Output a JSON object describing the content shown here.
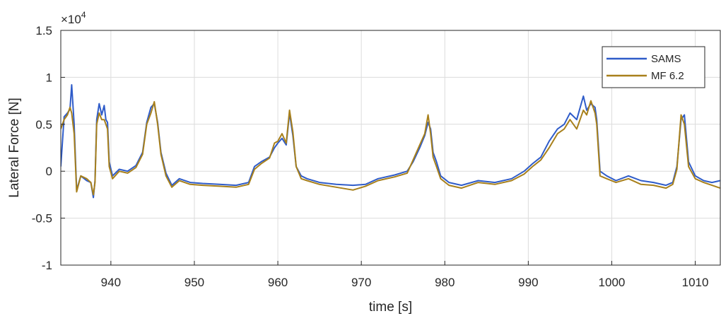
{
  "chart_data": {
    "type": "line",
    "xlabel": "time [s]",
    "ylabel": "Lateral Force [N]",
    "y_exponent_label": "×10",
    "y_exponent_power": "4",
    "xlim": [
      934,
      1013
    ],
    "ylim": [
      -1,
      1.5
    ],
    "x_ticks": [
      940,
      950,
      960,
      970,
      980,
      990,
      1000,
      1010
    ],
    "x_tick_labels": [
      "940",
      "950",
      "960",
      "970",
      "980",
      "990",
      "1000",
      "1010"
    ],
    "y_ticks": [
      -1,
      -0.5,
      0,
      0.5,
      1,
      1.5
    ],
    "y_tick_labels": [
      "-1",
      "-0.5",
      "0",
      "0.5",
      "1",
      "1.5"
    ],
    "grid": true,
    "legend_position": "top-right",
    "series": [
      {
        "name": "SAMS",
        "color": "#2f5cc9",
        "x": [
          934,
          934.4,
          934.8,
          935.1,
          935.3,
          935.6,
          935.9,
          936.4,
          937.1,
          937.6,
          937.9,
          938.1,
          938.3,
          938.6,
          938.9,
          939.2,
          939.4,
          939.6,
          939.8,
          940.2,
          941,
          942,
          943,
          943.8,
          944.3,
          944.8,
          945.2,
          945.6,
          946,
          946.6,
          947.3,
          948.2,
          949.5,
          951,
          953,
          955,
          956.5,
          957.2,
          958,
          959,
          959.6,
          960,
          960.5,
          961,
          961.4,
          961.8,
          962.2,
          962.8,
          963.5,
          965,
          967,
          969,
          970.5,
          972,
          974,
          975.5,
          976.2,
          977,
          977.6,
          978,
          978.3,
          978.6,
          979,
          979.5,
          980.5,
          982,
          984,
          986,
          988,
          989.5,
          990.5,
          991.5,
          992.5,
          993.5,
          994.3,
          995,
          995.8,
          996.6,
          997,
          997.5,
          998,
          998.2,
          998.6,
          999.4,
          1000.5,
          1002,
          1003.5,
          1005,
          1006.5,
          1007.3,
          1007.8,
          1008.3,
          1008.7,
          1009.2,
          1010,
          1011,
          1012,
          1013
        ],
        "y": [
          0.05,
          0.58,
          0.62,
          0.66,
          0.92,
          0.5,
          -0.2,
          -0.05,
          -0.1,
          -0.12,
          -0.28,
          -0.1,
          0.55,
          0.72,
          0.6,
          0.7,
          0.55,
          0.52,
          0.1,
          -0.05,
          0.02,
          0.0,
          0.06,
          0.2,
          0.52,
          0.68,
          0.72,
          0.52,
          0.2,
          -0.02,
          -0.15,
          -0.08,
          -0.12,
          -0.13,
          -0.14,
          -0.15,
          -0.12,
          0.05,
          0.1,
          0.15,
          0.25,
          0.3,
          0.35,
          0.28,
          0.62,
          0.38,
          0.05,
          -0.05,
          -0.08,
          -0.12,
          -0.14,
          -0.15,
          -0.14,
          -0.08,
          -0.04,
          0.0,
          0.1,
          0.25,
          0.38,
          0.52,
          0.45,
          0.2,
          0.1,
          -0.05,
          -0.12,
          -0.15,
          -0.1,
          -0.12,
          -0.08,
          0.0,
          0.08,
          0.15,
          0.32,
          0.45,
          0.5,
          0.62,
          0.55,
          0.8,
          0.65,
          0.72,
          0.68,
          0.55,
          0.0,
          -0.05,
          -0.1,
          -0.05,
          -0.1,
          -0.12,
          -0.15,
          -0.12,
          0.05,
          0.55,
          0.6,
          0.1,
          -0.05,
          -0.1,
          -0.12,
          -0.1
        ]
      },
      {
        "name": "MF 6.2",
        "color": "#a8801b",
        "x": [
          934,
          934.4,
          934.8,
          935.1,
          935.3,
          935.6,
          935.9,
          936.4,
          937.1,
          937.6,
          937.9,
          938.1,
          938.3,
          938.6,
          938.9,
          939.2,
          939.4,
          939.6,
          939.8,
          940.2,
          941,
          942,
          943,
          943.8,
          944.3,
          944.8,
          945.2,
          945.6,
          946,
          946.6,
          947.3,
          948.2,
          949.5,
          951,
          953,
          955,
          956.5,
          957.2,
          958,
          959,
          959.6,
          960,
          960.5,
          961,
          961.4,
          961.8,
          962.2,
          962.8,
          963.5,
          965,
          967,
          969,
          970.5,
          972,
          974,
          975.5,
          976.2,
          977,
          977.6,
          978,
          978.3,
          978.6,
          979,
          979.5,
          980.5,
          982,
          984,
          986,
          988,
          989.5,
          990.5,
          991.5,
          992.5,
          993.5,
          994.3,
          995,
          995.8,
          996.6,
          997,
          997.5,
          998,
          998.2,
          998.6,
          999.4,
          1000.5,
          1002,
          1003.5,
          1005,
          1006.5,
          1007.3,
          1007.8,
          1008.3,
          1008.7,
          1009.2,
          1010,
          1011,
          1012,
          1013
        ],
        "y": [
          0.45,
          0.55,
          0.6,
          0.68,
          0.62,
          0.4,
          -0.22,
          -0.05,
          -0.08,
          -0.12,
          -0.25,
          -0.12,
          0.5,
          0.62,
          0.55,
          0.55,
          0.5,
          0.45,
          0.05,
          -0.08,
          0.0,
          -0.02,
          0.04,
          0.18,
          0.5,
          0.62,
          0.74,
          0.5,
          0.18,
          -0.05,
          -0.17,
          -0.1,
          -0.14,
          -0.15,
          -0.16,
          -0.17,
          -0.14,
          0.02,
          0.08,
          0.14,
          0.3,
          0.32,
          0.4,
          0.3,
          0.65,
          0.42,
          0.05,
          -0.08,
          -0.1,
          -0.14,
          -0.17,
          -0.2,
          -0.16,
          -0.1,
          -0.06,
          -0.02,
          0.12,
          0.28,
          0.4,
          0.6,
          0.4,
          0.15,
          0.05,
          -0.08,
          -0.15,
          -0.18,
          -0.12,
          -0.14,
          -0.1,
          -0.03,
          0.05,
          0.12,
          0.25,
          0.4,
          0.45,
          0.55,
          0.45,
          0.65,
          0.6,
          0.75,
          0.62,
          0.5,
          -0.05,
          -0.08,
          -0.12,
          -0.08,
          -0.14,
          -0.15,
          -0.18,
          -0.14,
          0.02,
          0.6,
          0.5,
          0.05,
          -0.08,
          -0.12,
          -0.15,
          -0.18
        ]
      }
    ]
  }
}
